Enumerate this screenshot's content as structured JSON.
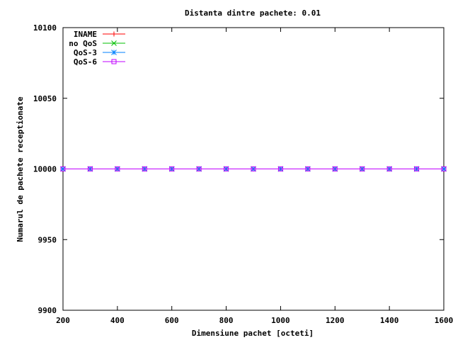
{
  "chart_data": {
    "type": "line",
    "title": "Distanta dintre pachete: 0.01",
    "xlabel": "Dimensiune pachet [octeti]",
    "ylabel": "Numarul de pachete receptionate",
    "xlim": [
      200,
      1600
    ],
    "ylim": [
      9900,
      10100
    ],
    "xticks": [
      200,
      400,
      600,
      800,
      1000,
      1200,
      1400,
      1600
    ],
    "yticks": [
      9900,
      9950,
      10000,
      10050,
      10100
    ],
    "grid": false,
    "legend_position": "top-left",
    "x": [
      200,
      300,
      400,
      500,
      600,
      700,
      800,
      900,
      1000,
      1100,
      1200,
      1300,
      1400,
      1500,
      1600
    ],
    "series": [
      {
        "name": "INAME",
        "color": "#ff0000",
        "marker": "plus",
        "values": [
          10000,
          10000,
          10000,
          10000,
          10000,
          10000,
          10000,
          10000,
          10000,
          10000,
          10000,
          10000,
          10000,
          10000,
          10000
        ]
      },
      {
        "name": "no QoS",
        "color": "#00c000",
        "marker": "cross",
        "values": [
          10000,
          10000,
          10000,
          10000,
          10000,
          10000,
          10000,
          10000,
          10000,
          10000,
          10000,
          10000,
          10000,
          10000,
          10000
        ]
      },
      {
        "name": "QoS-3",
        "color": "#0080ff",
        "marker": "star",
        "values": [
          10000,
          10000,
          10000,
          10000,
          10000,
          10000,
          10000,
          10000,
          10000,
          10000,
          10000,
          10000,
          10000,
          10000,
          10000
        ]
      },
      {
        "name": "QoS-6",
        "color": "#c000ff",
        "marker": "square",
        "values": [
          10000,
          10000,
          10000,
          10000,
          10000,
          10000,
          10000,
          10000,
          10000,
          10000,
          10000,
          10000,
          10000,
          10000,
          10000
        ]
      }
    ]
  }
}
